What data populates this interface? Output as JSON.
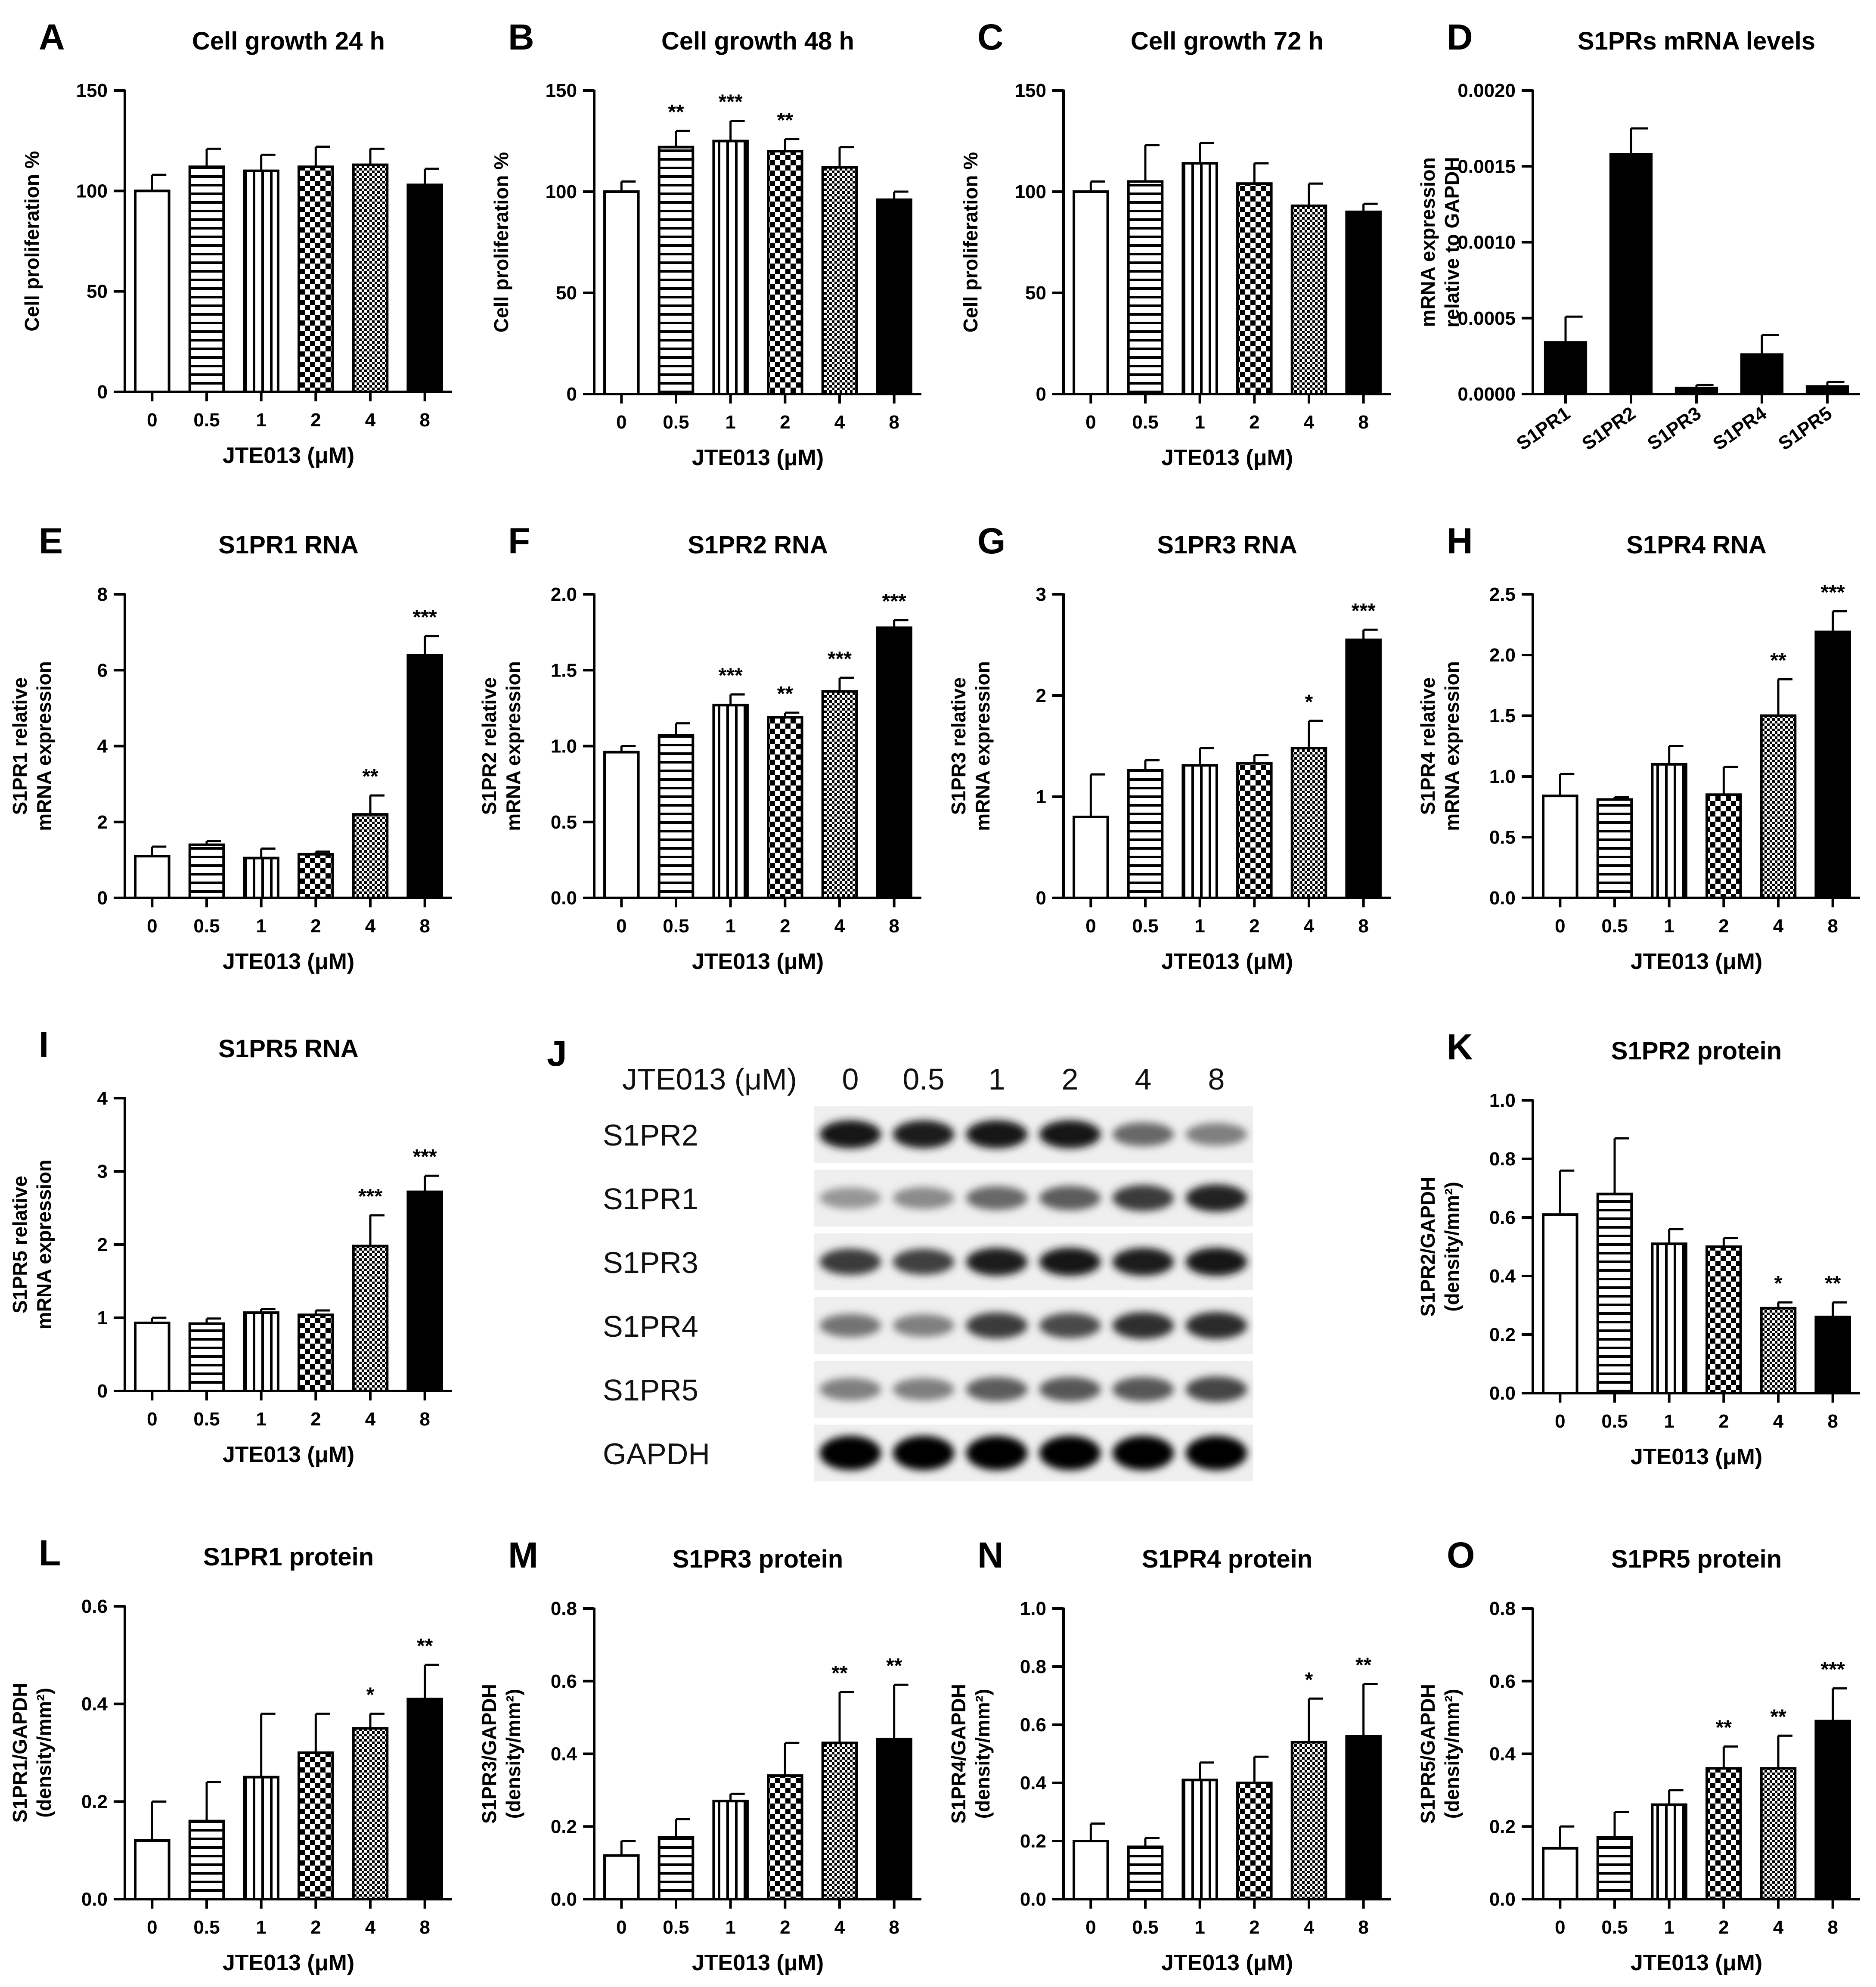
{
  "xlabel": "JTE013 (μM)",
  "doses": [
    "0",
    "0.5",
    "1",
    "2",
    "4",
    "8"
  ],
  "patterns": [
    "white",
    "hlines",
    "vlines",
    "checker",
    "dense",
    "black"
  ],
  "western_blot": {
    "letter": "J",
    "header_label": "JTE013 (μM)",
    "lanes": [
      "0",
      "0.5",
      "1",
      "2",
      "4",
      "8"
    ],
    "rows": [
      {
        "label": "S1PR2",
        "intensity": [
          0.9,
          0.88,
          0.9,
          0.9,
          0.55,
          0.45
        ]
      },
      {
        "label": "S1PR1",
        "intensity": [
          0.35,
          0.4,
          0.55,
          0.6,
          0.75,
          0.85
        ]
      },
      {
        "label": "S1PR3",
        "intensity": [
          0.75,
          0.72,
          0.88,
          0.9,
          0.88,
          0.9
        ]
      },
      {
        "label": "S1PR4",
        "intensity": [
          0.5,
          0.45,
          0.75,
          0.68,
          0.8,
          0.82
        ]
      },
      {
        "label": "S1PR5",
        "intensity": [
          0.45,
          0.45,
          0.6,
          0.62,
          0.62,
          0.7
        ]
      },
      {
        "label": "GAPDH",
        "intensity": [
          0.98,
          0.98,
          0.98,
          0.98,
          0.98,
          0.98
        ]
      }
    ]
  },
  "chart_data": [
    {
      "letter": "A",
      "type": "bar",
      "title": "Cell growth 24 h",
      "ylabel": [
        "Cell proliferation %"
      ],
      "xlabel": "JTE013 (μM)",
      "categories": [
        "0",
        "0.5",
        "1",
        "2",
        "4",
        "8"
      ],
      "values": [
        100,
        112,
        110,
        112,
        113,
        103
      ],
      "errors": [
        8,
        9,
        8,
        10,
        8,
        8
      ],
      "stars": [
        "",
        "",
        "",
        "",
        "",
        ""
      ],
      "ylim": [
        0,
        150
      ],
      "yticks": [
        "0",
        "50",
        "100",
        "150"
      ]
    },
    {
      "letter": "B",
      "type": "bar",
      "title": "Cell growth 48 h",
      "ylabel": [
        "Cell proliferation %"
      ],
      "xlabel": "JTE013 (μM)",
      "categories": [
        "0",
        "0.5",
        "1",
        "2",
        "4",
        "8"
      ],
      "values": [
        100,
        122,
        125,
        120,
        112,
        96
      ],
      "errors": [
        5,
        8,
        10,
        6,
        10,
        4
      ],
      "stars": [
        "",
        "**",
        "***",
        "**",
        "",
        ""
      ],
      "ylim": [
        0,
        150
      ],
      "yticks": [
        "0",
        "50",
        "100",
        "150"
      ]
    },
    {
      "letter": "C",
      "type": "bar",
      "title": "Cell growth 72 h",
      "ylabel": [
        "Cell proliferation %"
      ],
      "xlabel": "JTE013 (μM)",
      "categories": [
        "0",
        "0.5",
        "1",
        "2",
        "4",
        "8"
      ],
      "values": [
        100,
        105,
        114,
        104,
        93,
        90
      ],
      "errors": [
        5,
        18,
        10,
        10,
        11,
        4
      ],
      "stars": [
        "",
        "",
        "",
        "",
        "",
        ""
      ],
      "ylim": [
        0,
        150
      ],
      "yticks": [
        "0",
        "50",
        "100",
        "150"
      ]
    },
    {
      "letter": "D",
      "type": "bar",
      "title": "S1PRs mRNA levels",
      "ylabel": [
        "mRNA expression",
        "relative to GAPDH"
      ],
      "xlabel": "",
      "categories": [
        "S1PR1",
        "S1PR2",
        "S1PR3",
        "S1PR4",
        "S1PR5"
      ],
      "values": [
        0.00034,
        0.00158,
        4e-05,
        0.00026,
        5e-05
      ],
      "errors": [
        0.00017,
        0.00017,
        2e-05,
        0.00013,
        3e-05
      ],
      "stars": [
        "",
        "",
        "",
        "",
        ""
      ],
      "ylim": [
        0,
        0.002
      ],
      "yticks": [
        "0.0000",
        "0.0005",
        "0.0010",
        "0.0015",
        "0.0020"
      ],
      "rotate_labels": true
    },
    {
      "letter": "E",
      "type": "bar",
      "title": "S1PR1 RNA",
      "ylabel": [
        "S1PR1 relative",
        "mRNA expression"
      ],
      "xlabel": "JTE013 (μM)",
      "categories": [
        "0",
        "0.5",
        "1",
        "2",
        "4",
        "8"
      ],
      "values": [
        1.1,
        1.4,
        1.05,
        1.15,
        2.2,
        6.4
      ],
      "errors": [
        0.25,
        0.1,
        0.25,
        0.07,
        0.5,
        0.5
      ],
      "stars": [
        "",
        "",
        "",
        "",
        "**",
        "***"
      ],
      "ylim": [
        0,
        8
      ],
      "yticks": [
        "0",
        "2",
        "4",
        "6",
        "8"
      ]
    },
    {
      "letter": "F",
      "type": "bar",
      "title": "S1PR2 RNA",
      "ylabel": [
        "S1PR2 relative",
        "mRNA expression"
      ],
      "xlabel": "JTE013 (μM)",
      "categories": [
        "0",
        "0.5",
        "1",
        "2",
        "4",
        "8"
      ],
      "values": [
        0.96,
        1.07,
        1.27,
        1.19,
        1.36,
        1.78
      ],
      "errors": [
        0.04,
        0.08,
        0.07,
        0.03,
        0.09,
        0.05
      ],
      "stars": [
        "",
        "",
        "***",
        "**",
        "***",
        "***"
      ],
      "ylim": [
        0,
        2.0
      ],
      "yticks": [
        "0.0",
        "0.5",
        "1.0",
        "1.5",
        "2.0"
      ]
    },
    {
      "letter": "G",
      "type": "bar",
      "title": "S1PR3 RNA",
      "ylabel": [
        "S1PR3 relative",
        "mRNA expression"
      ],
      "xlabel": "JTE013 (μM)",
      "categories": [
        "0",
        "0.5",
        "1",
        "2",
        "4",
        "8"
      ],
      "values": [
        0.8,
        1.26,
        1.31,
        1.33,
        1.48,
        2.55
      ],
      "errors": [
        0.42,
        0.1,
        0.17,
        0.08,
        0.27,
        0.1
      ],
      "stars": [
        "",
        "",
        "",
        "",
        "*",
        "***"
      ],
      "ylim": [
        0,
        3
      ],
      "yticks": [
        "0",
        "1",
        "2",
        "3"
      ]
    },
    {
      "letter": "H",
      "type": "bar",
      "title": "S1PR4 RNA",
      "ylabel": [
        "S1PR4 relative",
        "mRNA expression"
      ],
      "xlabel": "JTE013 (μM)",
      "categories": [
        "0",
        "0.5",
        "1",
        "2",
        "4",
        "8"
      ],
      "values": [
        0.84,
        0.81,
        1.1,
        0.85,
        1.5,
        2.19
      ],
      "errors": [
        0.18,
        0.02,
        0.15,
        0.23,
        0.3,
        0.17
      ],
      "stars": [
        "",
        "",
        "",
        "",
        "**",
        "***"
      ],
      "ylim": [
        0,
        2.5
      ],
      "yticks": [
        "0.0",
        "0.5",
        "1.0",
        "1.5",
        "2.0",
        "2.5"
      ]
    },
    {
      "letter": "I",
      "type": "bar",
      "title": "S1PR5 RNA",
      "ylabel": [
        "S1PR5 relative",
        "mRNA expression"
      ],
      "xlabel": "JTE013 (μM)",
      "categories": [
        "0",
        "0.5",
        "1",
        "2",
        "4",
        "8"
      ],
      "values": [
        0.93,
        0.92,
        1.07,
        1.04,
        1.98,
        2.72
      ],
      "errors": [
        0.07,
        0.07,
        0.05,
        0.06,
        0.42,
        0.22
      ],
      "stars": [
        "",
        "",
        "",
        "",
        "***",
        "***"
      ],
      "ylim": [
        0,
        4
      ],
      "yticks": [
        "0",
        "1",
        "2",
        "3",
        "4"
      ]
    },
    {
      "letter": "K",
      "type": "bar",
      "title": "S1PR2 protein",
      "ylabel": [
        "S1PR2/GAPDH",
        "(density/mm²)"
      ],
      "xlabel": "JTE013 (μM)",
      "categories": [
        "0",
        "0.5",
        "1",
        "2",
        "4",
        "8"
      ],
      "values": [
        0.61,
        0.68,
        0.51,
        0.5,
        0.29,
        0.26
      ],
      "errors": [
        0.15,
        0.19,
        0.05,
        0.03,
        0.02,
        0.05
      ],
      "stars": [
        "",
        "",
        "",
        "",
        "*",
        "**"
      ],
      "ylim": [
        0,
        1.0
      ],
      "yticks": [
        "0.0",
        "0.2",
        "0.4",
        "0.6",
        "0.8",
        "1.0"
      ]
    },
    {
      "letter": "L",
      "type": "bar",
      "title": "S1PR1 protein",
      "ylabel": [
        "S1PR1/GAPDH",
        "(density/mm²)"
      ],
      "xlabel": "JTE013 (μM)",
      "categories": [
        "0",
        "0.5",
        "1",
        "2",
        "4",
        "8"
      ],
      "values": [
        0.12,
        0.16,
        0.25,
        0.3,
        0.35,
        0.41
      ],
      "errors": [
        0.08,
        0.08,
        0.13,
        0.08,
        0.03,
        0.07
      ],
      "stars": [
        "",
        "",
        "",
        "",
        "*",
        "**"
      ],
      "ylim": [
        0,
        0.6
      ],
      "yticks": [
        "0.0",
        "0.2",
        "0.4",
        "0.6"
      ]
    },
    {
      "letter": "M",
      "type": "bar",
      "title": "S1PR3 protein",
      "ylabel": [
        "S1PR3/GAPDH",
        "(density/mm²)"
      ],
      "xlabel": "JTE013 (μM)",
      "categories": [
        "0",
        "0.5",
        "1",
        "2",
        "4",
        "8"
      ],
      "values": [
        0.12,
        0.17,
        0.27,
        0.34,
        0.43,
        0.44
      ],
      "errors": [
        0.04,
        0.05,
        0.02,
        0.09,
        0.14,
        0.15
      ],
      "stars": [
        "",
        "",
        "",
        "",
        "**",
        "**"
      ],
      "ylim": [
        0,
        0.8
      ],
      "yticks": [
        "0.0",
        "0.2",
        "0.4",
        "0.6",
        "0.8"
      ]
    },
    {
      "letter": "N",
      "type": "bar",
      "title": "S1PR4 protein",
      "ylabel": [
        "S1PR4/GAPDH",
        "(density/mm²)"
      ],
      "xlabel": "JTE013 (μM)",
      "categories": [
        "0",
        "0.5",
        "1",
        "2",
        "4",
        "8"
      ],
      "values": [
        0.2,
        0.18,
        0.41,
        0.4,
        0.54,
        0.56
      ],
      "errors": [
        0.06,
        0.03,
        0.06,
        0.09,
        0.15,
        0.18
      ],
      "stars": [
        "",
        "",
        "",
        "",
        "*",
        "**"
      ],
      "ylim": [
        0,
        1.0
      ],
      "yticks": [
        "0.0",
        "0.2",
        "0.4",
        "0.6",
        "0.8",
        "1.0"
      ]
    },
    {
      "letter": "O",
      "type": "bar",
      "title": "S1PR5 protein",
      "ylabel": [
        "S1PR5/GAPDH",
        "(density/mm²)"
      ],
      "xlabel": "JTE013 (μM)",
      "categories": [
        "0",
        "0.5",
        "1",
        "2",
        "4",
        "8"
      ],
      "values": [
        0.14,
        0.17,
        0.26,
        0.36,
        0.36,
        0.49
      ],
      "errors": [
        0.06,
        0.07,
        0.04,
        0.06,
        0.09,
        0.09
      ],
      "stars": [
        "",
        "",
        "",
        "**",
        "**",
        "***"
      ],
      "ylim": [
        0,
        0.8
      ],
      "yticks": [
        "0.0",
        "0.2",
        "0.4",
        "0.6",
        "0.8"
      ]
    }
  ]
}
